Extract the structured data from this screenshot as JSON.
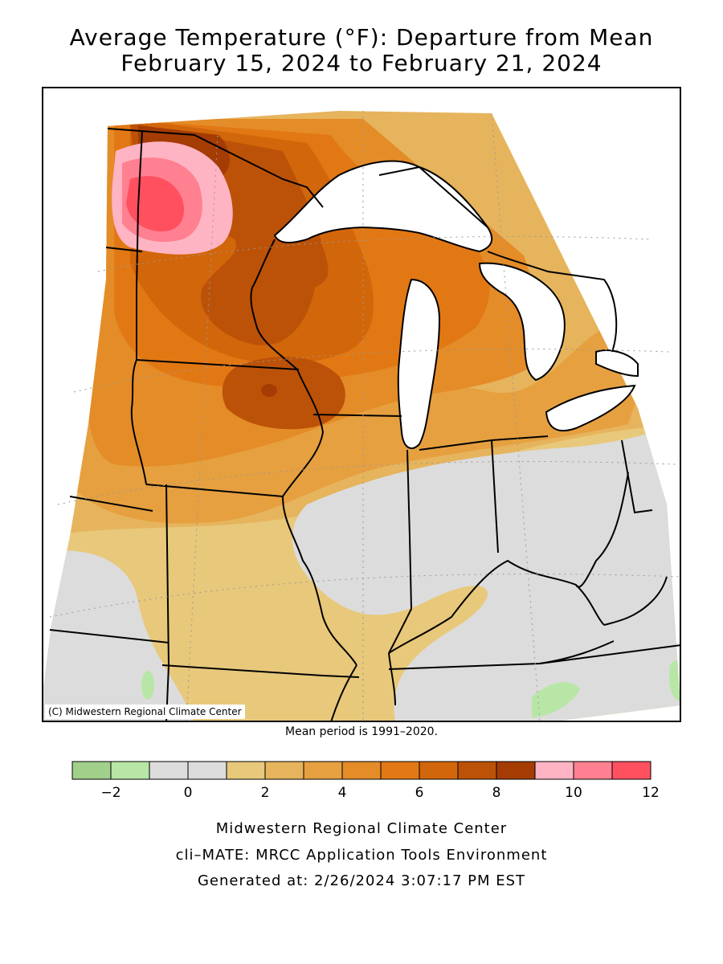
{
  "title_line1": "Average Temperature (°F): Departure from Mean",
  "title_line2": "February 15, 2024 to February 21, 2024",
  "copyright": "(C) Midwestern Regional Climate Center",
  "mean_period": "Mean period is 1991–2020.",
  "legend": {
    "bins": [
      {
        "from": -3,
        "to": -2,
        "color": "#a0d08a"
      },
      {
        "from": -2,
        "to": -1,
        "color": "#b8e6a6"
      },
      {
        "from": -1,
        "to": 0,
        "color": "#dcdcdc"
      },
      {
        "from": 0,
        "to": 1,
        "color": "#dcdcdc"
      },
      {
        "from": 1,
        "to": 2,
        "color": "#e8c87a"
      },
      {
        "from": 2,
        "to": 3,
        "color": "#e6b45c"
      },
      {
        "from": 3,
        "to": 4,
        "color": "#e6a040"
      },
      {
        "from": 4,
        "to": 5,
        "color": "#e48c28"
      },
      {
        "from": 5,
        "to": 6,
        "color": "#e27814"
      },
      {
        "from": 6,
        "to": 7,
        "color": "#d2660a"
      },
      {
        "from": 7,
        "to": 8,
        "color": "#bc5208"
      },
      {
        "from": 8,
        "to": 9,
        "color": "#a43c04"
      },
      {
        "from": 9,
        "to": 10,
        "color": "#ffb4c4"
      },
      {
        "from": 10,
        "to": 11,
        "color": "#ff8090"
      },
      {
        "from": 11,
        "to": 12,
        "color": "#ff5060"
      }
    ],
    "tick_labels": [
      "−2",
      "0",
      "2",
      "4",
      "6",
      "8",
      "10",
      "12"
    ],
    "tick_values": [
      -2,
      0,
      2,
      4,
      6,
      8,
      10,
      12
    ]
  },
  "footer": {
    "line1": "Midwestern Regional Climate Center",
    "line2": "cli–MATE: MRCC Application Tools Environment",
    "line3": "Generated at: 2/26/2024 3:07:17 PM EST"
  },
  "colors": {
    "warm_8_9": "#a43c04",
    "warm_7_8": "#bc5208",
    "warm_6_7": "#d2660a",
    "warm_5_6": "#e27814",
    "warm_4_5": "#e48c28",
    "warm_3_4": "#e6a040",
    "warm_2_3": "#e6b45c",
    "warm_1_2": "#e8c87a",
    "neutral": "#dcdcdc",
    "cool_1_2": "#b8e6a6",
    "pink_9_10": "#ffb4c4",
    "pink_10_11": "#ff8090",
    "pink_11_12": "#ff5060"
  }
}
